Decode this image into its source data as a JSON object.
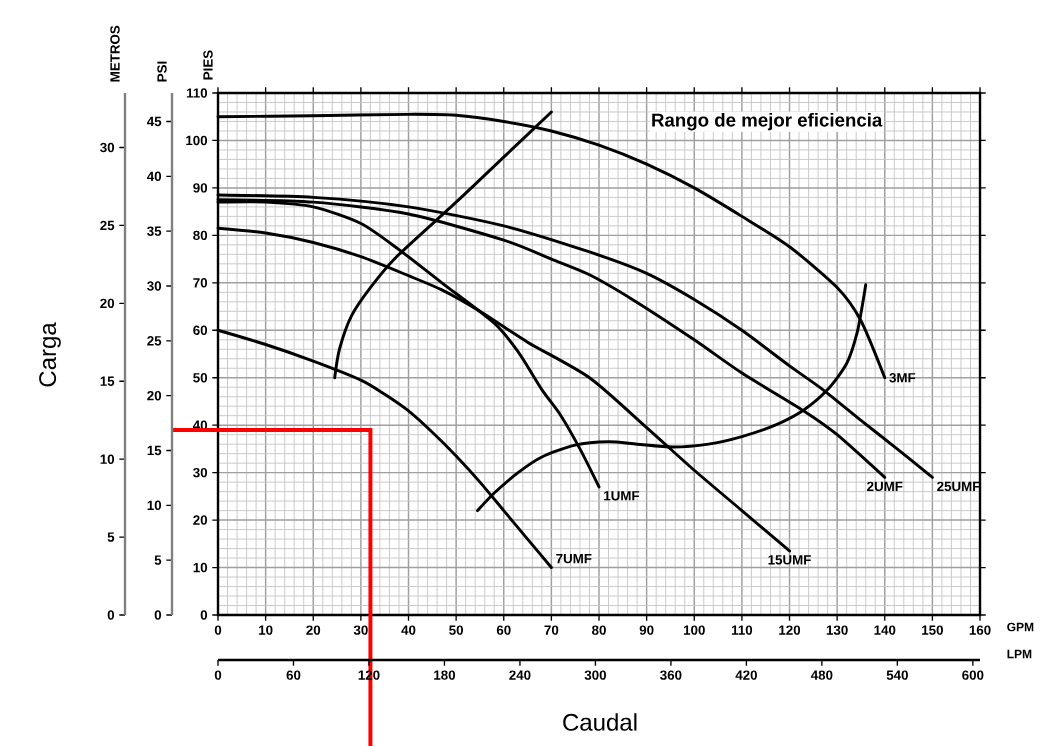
{
  "chart_data": {
    "type": "line",
    "annotations": [
      "Rango de mejor eficiencia",
      "Carga",
      "Caudal"
    ],
    "xlabel": "GPM",
    "x2label": "LPM",
    "ylabel": "PIES",
    "y2label": "PSI",
    "y3label": "METROS",
    "xlim": [
      0,
      160
    ],
    "xticks": [
      0,
      10,
      20,
      30,
      40,
      50,
      60,
      70,
      80,
      90,
      100,
      110,
      120,
      130,
      140,
      150,
      160
    ],
    "x2lim": [
      0,
      605.7
    ],
    "x2ticks": [
      0,
      60,
      120,
      180,
      240,
      300,
      360,
      420,
      480,
      540,
      600
    ],
    "ylim": [
      0,
      110
    ],
    "yticks": [
      0,
      10,
      20,
      30,
      40,
      50,
      60,
      70,
      80,
      90,
      100,
      110
    ],
    "y2lim": [
      0,
      47.6
    ],
    "y2ticks": [
      0,
      5,
      10,
      15,
      20,
      25,
      30,
      35,
      40,
      45
    ],
    "y3lim": [
      0,
      33.5
    ],
    "y3ticks": [
      0,
      5,
      10,
      15,
      20,
      25,
      30
    ],
    "grid": true,
    "series": [
      {
        "name": "3MF",
        "color": "#000000",
        "x": [
          0,
          20,
          40,
          50,
          60,
          70,
          80,
          90,
          100,
          110,
          120,
          130,
          135,
          140
        ],
        "values": [
          105,
          105.2,
          105.5,
          105.3,
          104,
          102,
          99,
          95,
          90,
          84,
          77.6,
          69,
          62,
          50
        ]
      },
      {
        "name": "25UMF",
        "color": "#000000",
        "x": [
          0,
          20,
          40,
          60,
          78,
          90,
          100,
          110,
          120,
          127,
          135,
          142,
          150
        ],
        "values": [
          88.5,
          88,
          86,
          82,
          76.5,
          72,
          66.5,
          60,
          52.5,
          47.5,
          41,
          35.5,
          29
        ]
      },
      {
        "name": "2UMF",
        "color": "#000000",
        "x": [
          0,
          20,
          40,
          60,
          70,
          78,
          87,
          100,
          110,
          123,
          130,
          140
        ],
        "values": [
          87.5,
          87,
          84.5,
          79,
          75,
          71.7,
          66.5,
          58,
          51,
          43,
          38,
          29
        ]
      },
      {
        "name": "1UMF",
        "color": "#000000",
        "x": [
          0,
          10,
          20,
          30,
          38,
          47,
          58,
          63,
          68,
          72,
          76,
          80
        ],
        "values": [
          87,
          87,
          86,
          82.5,
          77,
          70,
          61.5,
          55.5,
          47.5,
          42,
          35,
          27
        ]
      },
      {
        "name": "15UMF",
        "color": "#000000",
        "x": [
          0,
          10,
          20,
          30,
          40,
          47,
          55,
          65,
          78,
          90,
          100,
          110,
          120
        ],
        "values": [
          81.5,
          80.5,
          78.5,
          75.5,
          71.5,
          68.5,
          64,
          57.5,
          50,
          39.5,
          30.5,
          22,
          13.5
        ]
      },
      {
        "name": "7UMF",
        "color": "#000000",
        "x": [
          0,
          10,
          20,
          30,
          35,
          40,
          45,
          50,
          55,
          60,
          65,
          70
        ],
        "values": [
          60,
          57,
          53.5,
          49.5,
          46.5,
          43,
          38.5,
          33.5,
          28,
          22,
          16,
          10
        ]
      },
      {
        "color": "#000000",
        "x": [
          24.5,
          25.5,
          28,
          32,
          37.5,
          50,
          60,
          70
        ],
        "values": [
          50,
          56,
          63,
          69,
          75.5,
          87,
          96.5,
          106
        ]
      },
      {
        "color": "#000000",
        "x": [
          54.5,
          58,
          63,
          68,
          75,
          82,
          88,
          95.5,
          103,
          110,
          117,
          123,
          128,
          132,
          134.2,
          135.5,
          136
        ],
        "values": [
          22,
          25.7,
          30,
          33.3,
          35.8,
          36.5,
          36,
          35.4,
          36,
          37.6,
          40,
          43.2,
          47.5,
          53,
          59.5,
          66.5,
          69.6
        ]
      }
    ],
    "ref_lines": [
      {
        "axis": "x",
        "value": 32,
        "color": "#ff0000"
      },
      {
        "axis": "y",
        "value": 39,
        "color": "#ff0000"
      }
    ]
  }
}
